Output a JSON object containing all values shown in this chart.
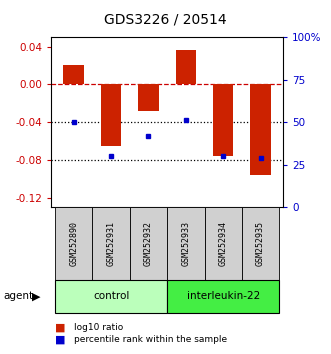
{
  "title": "GDS3226 / 20514",
  "samples": [
    "GSM252890",
    "GSM252931",
    "GSM252932",
    "GSM252933",
    "GSM252934",
    "GSM252935"
  ],
  "log10_ratio": [
    0.021,
    -0.065,
    -0.028,
    0.036,
    -0.076,
    -0.096
  ],
  "percentile_rank_pct": [
    50,
    30,
    42,
    51,
    30,
    29
  ],
  "groups": [
    {
      "label": "control",
      "start": 0,
      "end": 2,
      "color": "#bbffbb"
    },
    {
      "label": "interleukin-22",
      "start": 3,
      "end": 5,
      "color": "#55ee55"
    }
  ],
  "ylim_left": [
    -0.13,
    0.05
  ],
  "ylim_right": [
    0,
    100
  ],
  "yticks_left": [
    -0.12,
    -0.08,
    -0.04,
    0.0,
    0.04
  ],
  "yticks_right": [
    0,
    25,
    50,
    75,
    100
  ],
  "bar_color": "#cc2200",
  "dot_color": "#0000cc",
  "zero_line_color": "#cc0000",
  "dotted_line_color": "#000000",
  "title_fontsize": 10,
  "tick_fontsize": 7.5,
  "bar_width": 0.55
}
